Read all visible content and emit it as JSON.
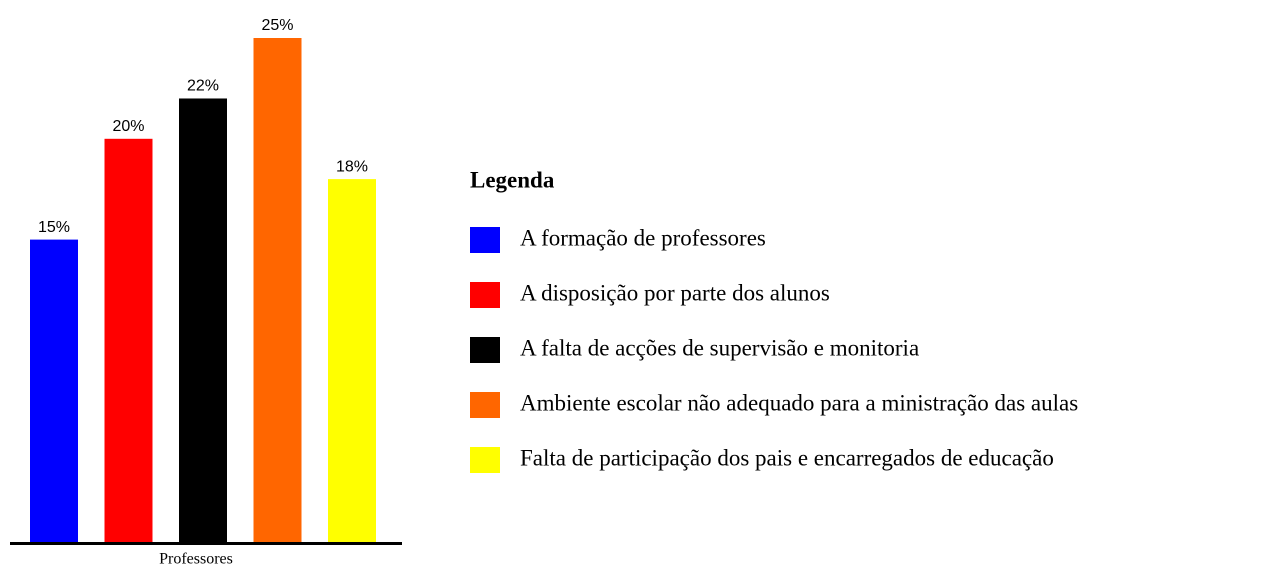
{
  "chart_data": {
    "type": "bar",
    "categories": [
      "Professores"
    ],
    "legend_title": "Legenda",
    "series": [
      {
        "name": "A formação de professores",
        "color": "#0000ff",
        "values": [
          15
        ],
        "value_labels": [
          "15%"
        ]
      },
      {
        "name": "A disposição por parte dos alunos",
        "color": "#ff0000",
        "values": [
          20
        ],
        "value_labels": [
          "20%"
        ]
      },
      {
        "name": "A falta de acções de supervisão e monitoria",
        "color": "#000000",
        "values": [
          22
        ],
        "value_labels": [
          "22%"
        ]
      },
      {
        "name": "Ambiente escolar não adequado para a ministração das aulas",
        "color": "#ff6600",
        "values": [
          25
        ],
        "value_labels": [
          "25%"
        ]
      },
      {
        "name": "Falta de participação dos pais e encarregados de educação",
        "color": "#ffff00",
        "values": [
          18
        ],
        "value_labels": [
          "18%"
        ]
      }
    ],
    "legend": "right"
  }
}
